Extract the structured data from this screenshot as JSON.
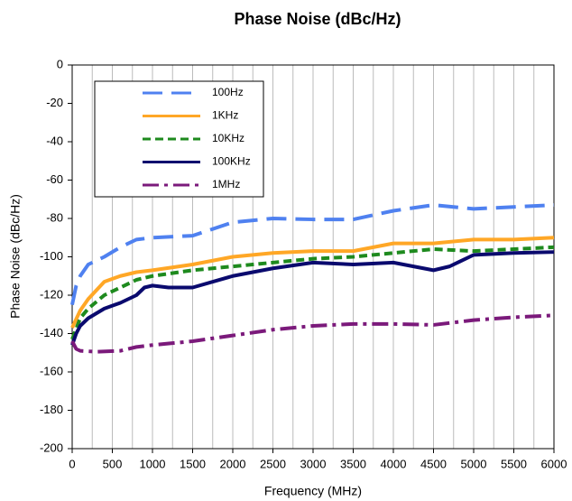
{
  "chart_data": {
    "type": "line",
    "title": "Phase Noise (dBc/Hz)",
    "xlabel": "Frequency (MHz)",
    "ylabel": "Phase Noise (dBc/Hz)",
    "xlim": [
      0,
      6000
    ],
    "ylim": [
      -200,
      0
    ],
    "xticks": [
      0,
      500,
      1000,
      1500,
      2000,
      2500,
      3000,
      3500,
      4000,
      4500,
      5000,
      5500,
      6000
    ],
    "yticks": [
      -200,
      -180,
      -160,
      -140,
      -120,
      -100,
      -80,
      -60,
      -40,
      -20,
      0
    ],
    "x_grid": [
      250,
      500,
      750,
      1000,
      1250,
      1500,
      1750,
      2000,
      2250,
      2500,
      2750,
      3000,
      3250,
      3500,
      3750,
      4000,
      4250,
      4500,
      4750,
      5000,
      5250,
      5500,
      5750
    ],
    "legend": "upper left",
    "series": [
      {
        "name": "100Hz",
        "color": "#4f81f0",
        "dash": "22 10",
        "x": [
          0,
          50,
          100,
          200,
          400,
          600,
          800,
          1000,
          1500,
          2000,
          2500,
          3000,
          3500,
          4000,
          4500,
          5000,
          5500,
          6000
        ],
        "values": [
          -125,
          -115,
          -110,
          -104,
          -100,
          -95,
          -91,
          -90,
          -89,
          -82,
          -80,
          -80.5,
          -80.5,
          -76,
          -73,
          -75,
          -74,
          -73
        ]
      },
      {
        "name": "1KHz",
        "color": "#ffa726",
        "dash": "",
        "x": [
          0,
          100,
          200,
          400,
          600,
          800,
          1000,
          1500,
          2000,
          2500,
          3000,
          3500,
          4000,
          4500,
          5000,
          5500,
          6000
        ],
        "values": [
          -137,
          -128,
          -122,
          -113,
          -110,
          -108,
          -107,
          -104,
          -100,
          -98,
          -97,
          -97,
          -93,
          -93,
          -91,
          -91,
          -90
        ]
      },
      {
        "name": "10KHz",
        "color": "#1e8a1e",
        "dash": "9 5",
        "x": [
          0,
          100,
          200,
          400,
          600,
          800,
          1000,
          1500,
          2000,
          2500,
          3000,
          3500,
          4000,
          4500,
          5000,
          5500,
          6000
        ],
        "values": [
          -143,
          -132,
          -127,
          -120,
          -116,
          -112,
          -110,
          -107,
          -105,
          -103,
          -101,
          -100,
          -98,
          -96,
          -97,
          -96,
          -95
        ]
      },
      {
        "name": "100KHz",
        "color": "#0a0a6e",
        "dash": "",
        "x": [
          0,
          50,
          100,
          200,
          400,
          600,
          800,
          900,
          1000,
          1200,
          1500,
          2000,
          2500,
          3000,
          3500,
          4000,
          4500,
          4700,
          5000,
          5500,
          6000
        ],
        "values": [
          -146,
          -140,
          -136,
          -132,
          -127,
          -124,
          -120,
          -116,
          -115,
          -116,
          -116,
          -110,
          -106,
          -103,
          -104,
          -103,
          -107,
          -105,
          -99,
          -98,
          -97.5
        ]
      },
      {
        "name": "1MHz",
        "color": "#7b1a7b",
        "dash": "18 6 4 6",
        "x": [
          0,
          50,
          100,
          300,
          600,
          800,
          1000,
          1500,
          2000,
          2500,
          3000,
          3500,
          4000,
          4500,
          5000,
          5500,
          6000
        ],
        "values": [
          -144,
          -148,
          -149,
          -149.5,
          -149,
          -147,
          -146,
          -144,
          -141,
          -138,
          -136,
          -135,
          -135,
          -135.5,
          -133,
          -131.5,
          -130.5
        ]
      }
    ]
  }
}
